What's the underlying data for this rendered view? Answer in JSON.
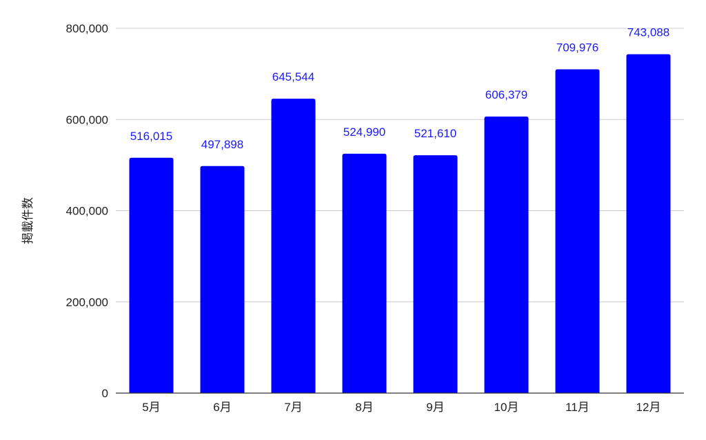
{
  "chart_data": {
    "type": "bar",
    "title": "",
    "xlabel": "",
    "ylabel": "掲載件数",
    "categories": [
      "5月",
      "6月",
      "7月",
      "8月",
      "9月",
      "10月",
      "11月",
      "12月"
    ],
    "values": [
      516015,
      497898,
      645544,
      524990,
      521610,
      606379,
      709976,
      743088
    ],
    "data_labels": [
      "516,015",
      "497,898",
      "645,544",
      "524,990",
      "521,610",
      "606,379",
      "709,976",
      "743,088"
    ],
    "ylim": [
      0,
      800000
    ],
    "yticks": [
      0,
      200000,
      400000,
      600000,
      800000
    ],
    "ytick_labels": [
      "0",
      "200,000",
      "400,000",
      "600,000",
      "800,000"
    ],
    "grid": true,
    "legend": "none",
    "colors": {
      "bar": "#0000ff",
      "data_label": "#1a1aff",
      "grid": "#cccccc",
      "axis": "#333333",
      "text": "#222222"
    }
  }
}
